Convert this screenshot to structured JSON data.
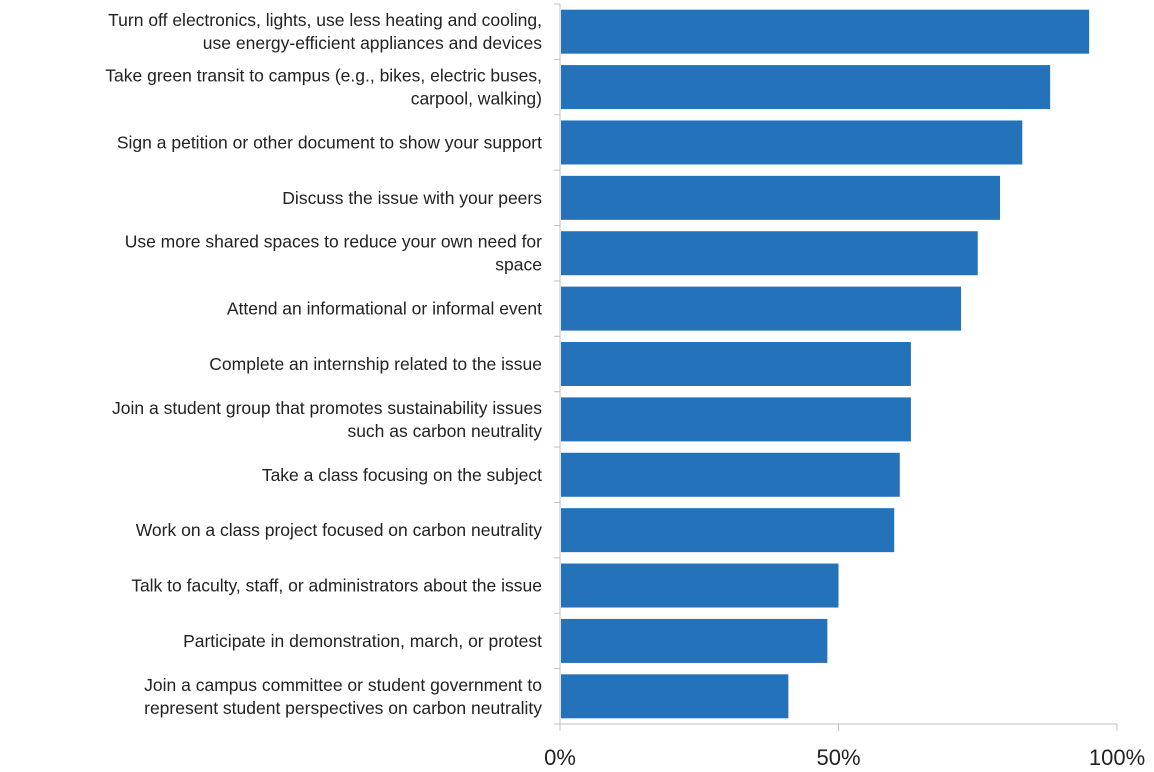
{
  "chart_data": {
    "type": "bar",
    "orientation": "horizontal",
    "categories": [
      "Turn off electronics, lights, use less heating and cooling,\nuse energy-efficient appliances and devices",
      "Take green transit to campus (e.g., bikes, electric buses,\ncarpool, walking)",
      "Sign a petition or other document to show your support",
      "Discuss the issue with your peers",
      "Use more shared spaces to reduce your own need for\nspace",
      "Attend an informational or informal event",
      "Complete an internship related to the issue",
      "Join a student group that promotes sustainability issues\nsuch as carbon neutrality",
      "Take a class focusing on the subject",
      "Work on a class project focused on carbon neutrality",
      "Talk to faculty, staff, or administrators about the issue",
      "Participate in demonstration, march, or protest",
      "Join a campus committee or student government to\nrepresent student perspectives on carbon neutrality"
    ],
    "values": [
      95,
      88,
      83,
      79,
      75,
      72,
      63,
      63,
      61,
      60,
      50,
      48,
      41
    ],
    "xlim": [
      0,
      100
    ],
    "ticks": [
      0,
      50,
      100
    ],
    "tick_labels": [
      "0%",
      "50%",
      "100%"
    ],
    "title": "",
    "xlabel": "",
    "ylabel": "",
    "grid": false,
    "bar_color": "#2472B9",
    "axis_color": "#BFBFBF"
  }
}
